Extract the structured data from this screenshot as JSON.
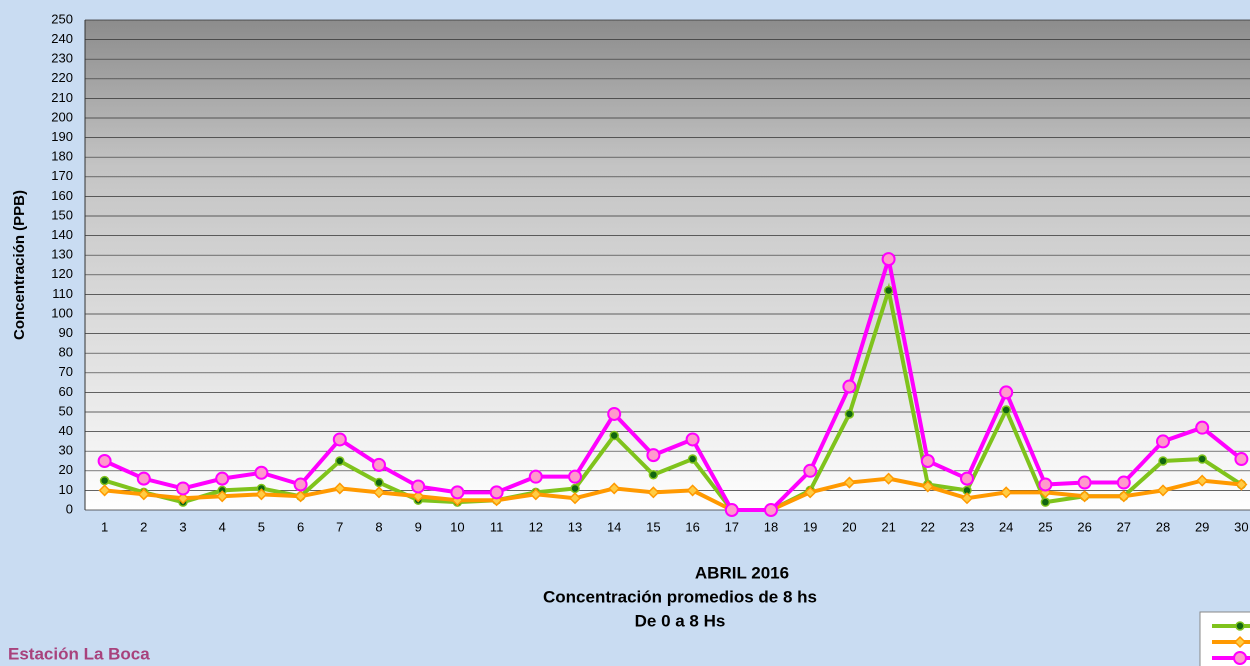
{
  "chart_data": {
    "type": "line",
    "title_lines": [
      "ABRIL 2016",
      "Concentración promedios de 8 hs",
      "De 0 a 8 Hs"
    ],
    "annotation": "Estación La Boca",
    "y_label": "Concentración  (PPB)",
    "categories": [
      "1",
      "2",
      "3",
      "4",
      "5",
      "6",
      "7",
      "8",
      "9",
      "10",
      "11",
      "12",
      "13",
      "14",
      "15",
      "16",
      "17",
      "18",
      "19",
      "20",
      "21",
      "22",
      "23",
      "24",
      "25",
      "26",
      "27",
      "28",
      "29",
      "30"
    ],
    "series": [
      {
        "color": "#7fc31c",
        "marker": "dot",
        "values": [
          15,
          9,
          4,
          10,
          11,
          7,
          25,
          14,
          5,
          4,
          5,
          9,
          11,
          38,
          18,
          26,
          0,
          0,
          10,
          49,
          112,
          13,
          10,
          51,
          4,
          7,
          7,
          25,
          26,
          13
        ]
      },
      {
        "color": "#ff9900",
        "marker": "diamond",
        "values": [
          10,
          8,
          6,
          7,
          8,
          7,
          11,
          9,
          7,
          5,
          5,
          8,
          6,
          11,
          9,
          10,
          0,
          0,
          9,
          14,
          16,
          12,
          6,
          9,
          9,
          7,
          7,
          10,
          15,
          13
        ]
      },
      {
        "color": "#ff00ff",
        "marker": "circle",
        "values": [
          25,
          16,
          11,
          16,
          19,
          13,
          36,
          23,
          12,
          9,
          9,
          17,
          17,
          49,
          28,
          36,
          0,
          0,
          20,
          63,
          128,
          25,
          16,
          60,
          13,
          14,
          14,
          35,
          42,
          26
        ]
      }
    ],
    "ylim": [
      0,
      250
    ],
    "yticks": [
      0,
      10,
      20,
      30,
      40,
      50,
      60,
      70,
      80,
      90,
      100,
      110,
      120,
      130,
      140,
      150,
      160,
      170,
      180,
      190,
      200,
      210,
      220,
      230,
      240,
      250
    ],
    "grid": true
  }
}
